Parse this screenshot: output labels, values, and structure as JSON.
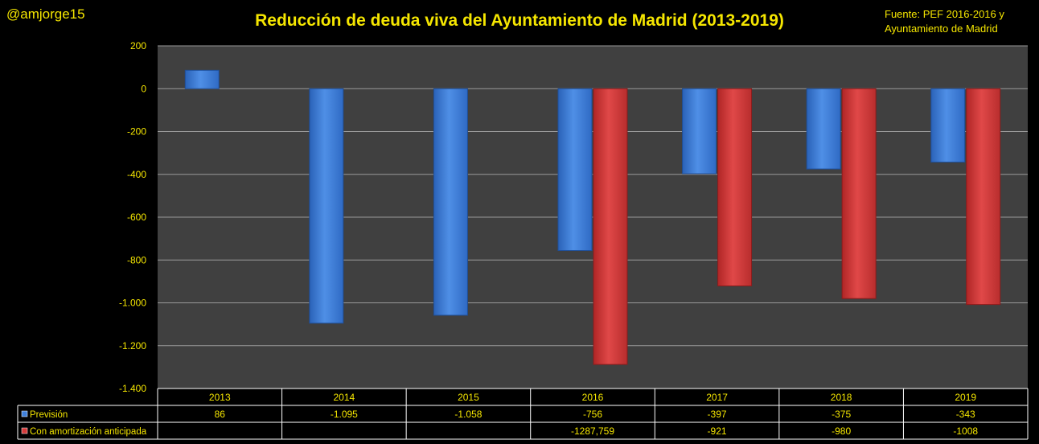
{
  "handle": "@amjorge15",
  "source": {
    "line1": "Fuente: PEF 2016-2016  y",
    "line2": "Ayuntamiento de Madrid"
  },
  "colors": {
    "background": "#000000",
    "plot": "#404040",
    "text": "#f5e600",
    "series_blue": "#3f7fd9",
    "series_red": "#d43a3a"
  },
  "chart_data": {
    "type": "bar",
    "title": "Reducción de deuda viva del Ayuntamiento de Madrid (2013-2019)",
    "xlabel": "",
    "ylabel": "",
    "ylim": [
      -1400,
      200
    ],
    "yticks": [
      200,
      0,
      -200,
      -400,
      -600,
      -800,
      -1000,
      -1200,
      -1400
    ],
    "ytick_labels": [
      "200",
      "0",
      "-200",
      "-400",
      "-600",
      "-800",
      "-1.000",
      "-1.200",
      "-1.400"
    ],
    "grid": true,
    "categories": [
      "2013",
      "2014",
      "2015",
      "2016",
      "2017",
      "2018",
      "2019"
    ],
    "series": [
      {
        "name": "Previsión",
        "values": [
          86,
          -1095,
          -1058,
          -756,
          -397,
          -375,
          -343
        ],
        "labels": [
          "86",
          "-1.095",
          "-1.058",
          "-756",
          "-397",
          "-375",
          "-343"
        ]
      },
      {
        "name": "Con amortización anticipada",
        "values": [
          null,
          null,
          null,
          -1287.759,
          -921,
          -980,
          -1008
        ],
        "labels": [
          "",
          "",
          "",
          "-1287,759",
          "-921",
          "-980",
          "-1008"
        ]
      }
    ]
  }
}
